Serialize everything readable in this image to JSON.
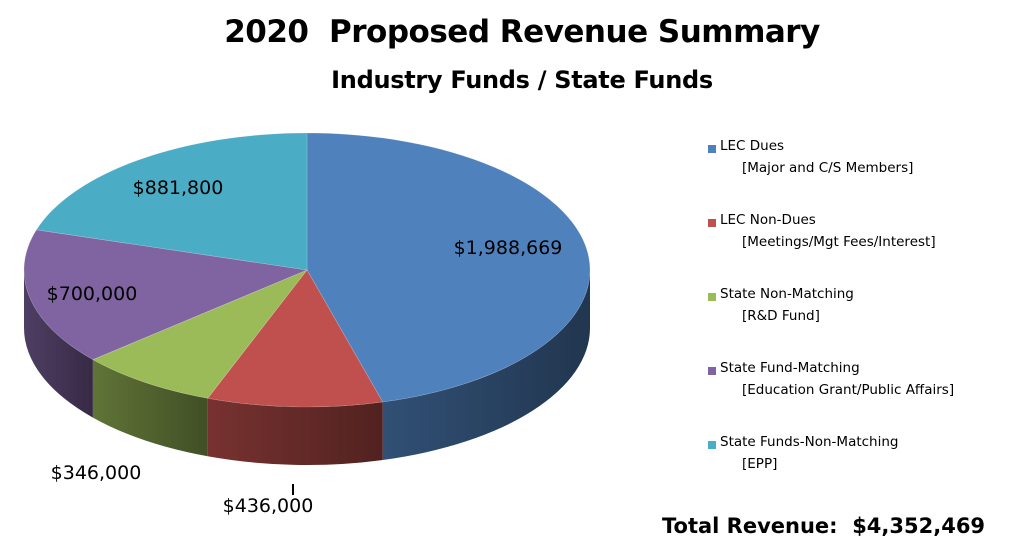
{
  "title": "2020  Proposed Revenue Summary",
  "subtitle": "Industry Funds / State Funds",
  "total": "Total Revenue:  $4,352,469",
  "legend": [
    {
      "label": "LEC Dues",
      "sub": "[Major and C/S Members]",
      "color": "#4f81bd"
    },
    {
      "label": "LEC Non-Dues",
      "sub": "[Meetings/Mgt Fees/Interest]",
      "color": "#c0504d"
    },
    {
      "label": "State Non-Matching",
      "sub": "[R&D Fund]",
      "color": "#9bbb59"
    },
    {
      "label": "State Fund-Matching",
      "sub": "[Education Grant/Public Affairs]",
      "color": "#8064a2"
    },
    {
      "label": "State Funds-Non-Matching",
      "sub": "[EPP]",
      "color": "#4bacc6"
    }
  ],
  "chart_data": {
    "type": "pie",
    "title": "2020  Proposed Revenue Summary",
    "subtitle": "Industry Funds / State Funds",
    "categories": [
      "LEC Dues",
      "LEC Non-Dues",
      "State Non-Matching",
      "State Fund-Matching",
      "State Funds-Non-Matching"
    ],
    "values": [
      1988669,
      436000,
      346000,
      700000,
      881800
    ],
    "data_labels": [
      "$1,988,669",
      "$436,000",
      "$346,000",
      "$700,000",
      "$881,800"
    ],
    "colors": [
      "#4f81bd",
      "#c0504d",
      "#9bbb59",
      "#8064a2",
      "#4bacc6"
    ],
    "legend_position": "right",
    "style": "3d"
  }
}
